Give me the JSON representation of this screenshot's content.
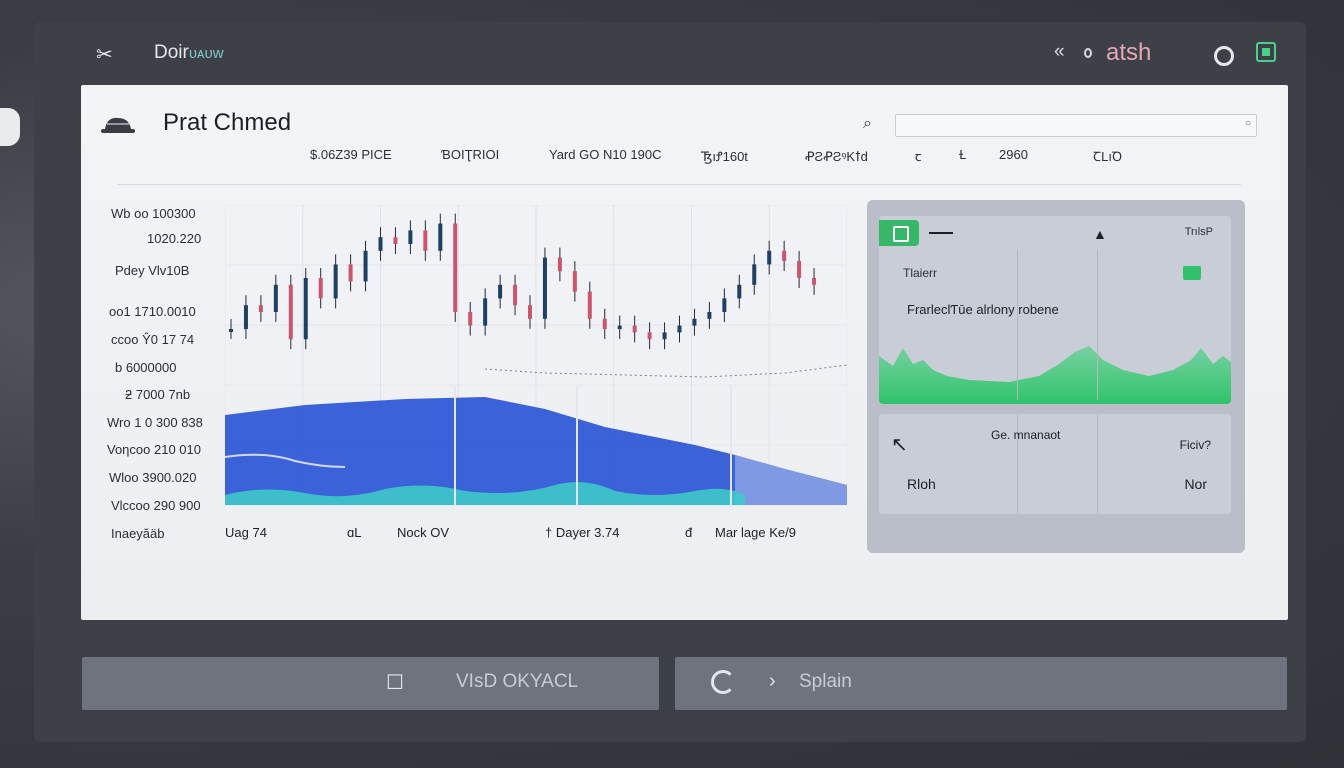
{
  "topbar": {
    "app_title": "Doir",
    "app_title_suffix": "ᴜᴀᴜᴡ",
    "back_label": "«",
    "user_label": "atsh",
    "icons": [
      "scissors-icon",
      "back-icon",
      "circle-icon",
      "square-icon"
    ]
  },
  "panel": {
    "title": "Prat Chmed",
    "search": {
      "value": "",
      "placeholder": ""
    },
    "stats": [
      "$.06Z39 PICE",
      "ƁOIƮRIOI",
      "Yard GO N10 190C",
      "ꜨıꝬ160t",
      "ꝒƧꝒƧꝰKꝉd",
      "ꞇ",
      "Ɫ",
      "2960",
      "ꞆLıꝹ"
    ],
    "y_labels": [
      "Wb oo 100300",
      "1020.220",
      "Pdey Vlv10B",
      "oo1 1710.0010",
      "ccoo Ŷ0 17 74",
      "b 6000000",
      "ƻ 7000 7nb",
      "Wro 1 0 300 838",
      "Voƞcoo 210 010",
      "Wloo 3900.020",
      "Vlccoo 290 900",
      "Inaeyăäb"
    ],
    "x_labels": [
      "Uag 74",
      "ɑL",
      "Nock OV",
      "† Dayer 3.74",
      "đ",
      "Mar lage Ke/9"
    ]
  },
  "cards": {
    "card1": {
      "top_label": "TrılsP",
      "label_a": "Tlaierr",
      "label_b": "FrarleclƬūe alrlony robene"
    },
    "card2": {
      "label_1": "Ge. mnanaot",
      "label_2": "Ficiv?",
      "label_3": "Rloh",
      "label_4": "Nor"
    }
  },
  "buttons": {
    "left_label": "VIsD OKYACL",
    "right_label": "Splain"
  },
  "colors": {
    "candle_up": "#1f3f63",
    "candle_down": "#c9566c",
    "area_blue": "#2b56d6",
    "area_teal": "#3ec9c9",
    "green": "#2fc26a"
  },
  "chart_data": {
    "type": "line",
    "title": "",
    "xlabel": "",
    "ylabel": "",
    "series": [
      {
        "values": [
          65,
          72,
          70,
          78,
          62,
          80,
          74,
          84,
          79,
          88,
          92,
          90,
          94,
          88,
          96,
          70,
          66,
          74,
          78,
          72,
          68,
          86,
          82,
          76,
          68,
          65,
          66,
          64,
          62,
          64,
          66,
          68,
          70,
          74,
          78,
          84,
          88,
          85,
          80,
          78
        ]
      }
    ]
  }
}
